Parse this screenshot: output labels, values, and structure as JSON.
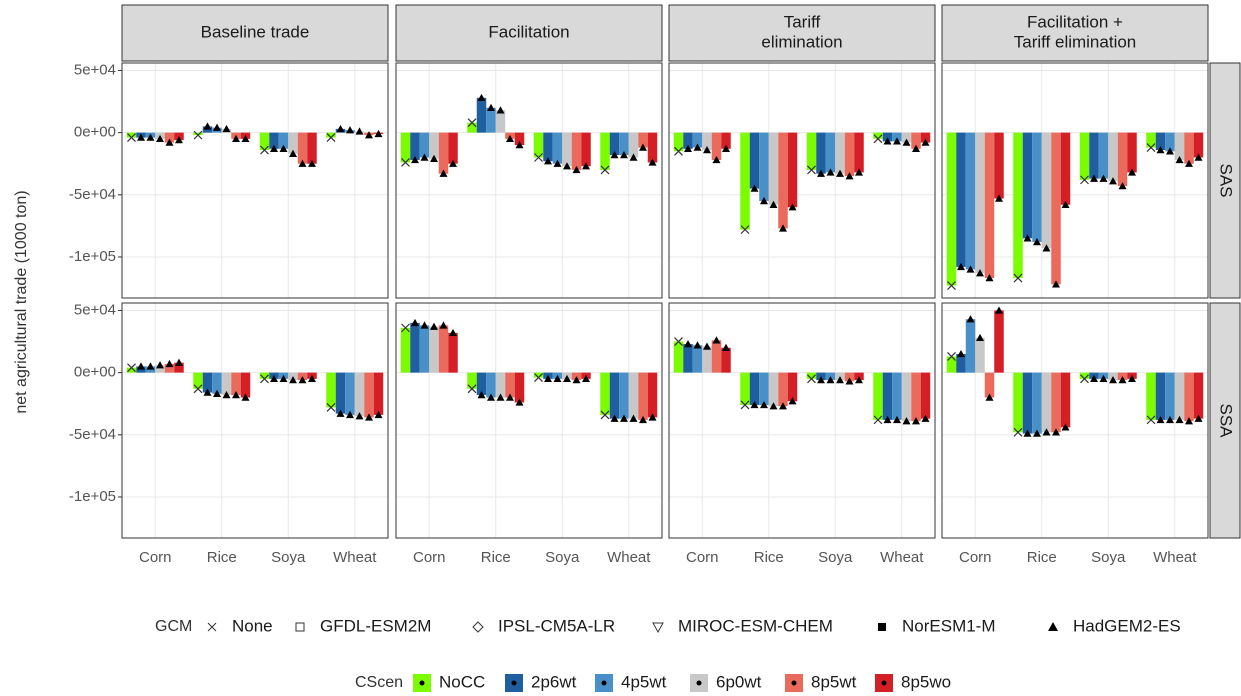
{
  "chart_data": {
    "type": "bar",
    "y_label": "net agricultural trade (1000 ton)",
    "facets": [
      [
        "Baseline trade"
      ],
      [
        "Facilitation"
      ],
      [
        "Tariff",
        "elimination"
      ],
      [
        "Facilitation +",
        "Tariff elimination"
      ]
    ],
    "rows": [
      "SAS",
      "SSA"
    ],
    "categories": [
      "Corn",
      "Rice",
      "Soya",
      "Wheat"
    ],
    "ylim": [
      -133000,
      56000
    ],
    "yticks": [
      {
        "value": 50000,
        "label": "5e+04"
      },
      {
        "value": 0,
        "label": "0e+00"
      },
      {
        "value": -50000,
        "label": "-5e+04"
      },
      {
        "value": -100000,
        "label": "-1e+05"
      }
    ],
    "grid": true,
    "series": [
      {
        "name": "NoCC",
        "color": "#7cfc00"
      },
      {
        "name": "2p6wt",
        "color": "#1f5fa0"
      },
      {
        "name": "4p5wt",
        "color": "#4a90c8"
      },
      {
        "name": "6p0wt",
        "color": "#c8c8c8"
      },
      {
        "name": "8p5wt",
        "color": "#ea6a5c"
      },
      {
        "name": "8p5wo",
        "color": "#d41f26"
      }
    ],
    "series_legend_title": "CScen",
    "gcm_legend_title": "GCM",
    "gcms": [
      "None",
      "GFDL-ESM2M",
      "IPSL-CM5A-LR",
      "MIROC-ESM-CHEM",
      "NorESM1-M",
      "HadGEM2-ES"
    ],
    "panels": [
      [
        [
          -4000,
          -4000,
          -4000,
          -5000,
          -8000,
          -6000
        ],
        [
          -2000,
          5000,
          4000,
          3000,
          -5000,
          -5000
        ],
        [
          -14000,
          -13000,
          -13000,
          -17000,
          -25000,
          -25000
        ],
        [
          -4000,
          3000,
          2000,
          1000,
          -2000,
          -1000
        ]
      ],
      [
        [
          -24000,
          -22000,
          -20000,
          -21000,
          -33000,
          -25000
        ],
        [
          8000,
          28000,
          20000,
          18000,
          -5000,
          -10000
        ],
        [
          -20000,
          -23000,
          -25000,
          -27000,
          -30000,
          -27000
        ],
        [
          -30000,
          -18000,
          -18000,
          -20000,
          -12000,
          -24000
        ]
      ],
      [
        [
          -15000,
          -13000,
          -12000,
          -14000,
          -22000,
          -13000
        ],
        [
          -78000,
          -45000,
          -55000,
          -58000,
          -77000,
          -60000
        ],
        [
          -30000,
          -33000,
          -32000,
          -33000,
          -35000,
          -32000
        ],
        [
          -5000,
          -7000,
          -7000,
          -8000,
          -13000,
          -8000
        ]
      ],
      [
        [
          -123000,
          -108000,
          -110000,
          -113000,
          -117000,
          -53000
        ],
        [
          -117000,
          -85000,
          -88000,
          -93000,
          -122000,
          -58000
        ],
        [
          -38000,
          -37000,
          -37000,
          -39000,
          -43000,
          -32000
        ],
        [
          -12000,
          -14000,
          -15000,
          -22000,
          -25000,
          -20000
        ]
      ],
      [
        [
          4000,
          5000,
          5000,
          6000,
          7000,
          8000
        ],
        [
          -13000,
          -16000,
          -17000,
          -18000,
          -18000,
          -20000
        ],
        [
          -5000,
          -5000,
          -5000,
          -6000,
          -6000,
          -5000
        ],
        [
          -28000,
          -33000,
          -34000,
          -35000,
          -36000,
          -34000
        ]
      ],
      [
        [
          36000,
          40000,
          38000,
          37000,
          38000,
          32000
        ],
        [
          -13000,
          -18000,
          -20000,
          -20000,
          -20000,
          -24000
        ],
        [
          -4000,
          -5000,
          -5000,
          -5000,
          -6000,
          -5000
        ],
        [
          -34000,
          -37000,
          -37000,
          -37000,
          -38000,
          -36000
        ]
      ],
      [
        [
          25000,
          23000,
          22000,
          21000,
          26000,
          20000
        ],
        [
          -26000,
          -26000,
          -26000,
          -27000,
          -27000,
          -23000
        ],
        [
          -5000,
          -6000,
          -6000,
          -6000,
          -7000,
          -6000
        ],
        [
          -38000,
          -38000,
          -38000,
          -39000,
          -39000,
          -37000
        ]
      ],
      [
        [
          13000,
          15000,
          43000,
          28000,
          -20000,
          50000
        ],
        [
          -48000,
          -49000,
          -49000,
          -48000,
          -48000,
          -44000
        ],
        [
          -5000,
          -5000,
          -5000,
          -6000,
          -6000,
          -5000
        ],
        [
          -38000,
          -38000,
          -38000,
          -38000,
          -39000,
          -37000
        ]
      ]
    ]
  }
}
